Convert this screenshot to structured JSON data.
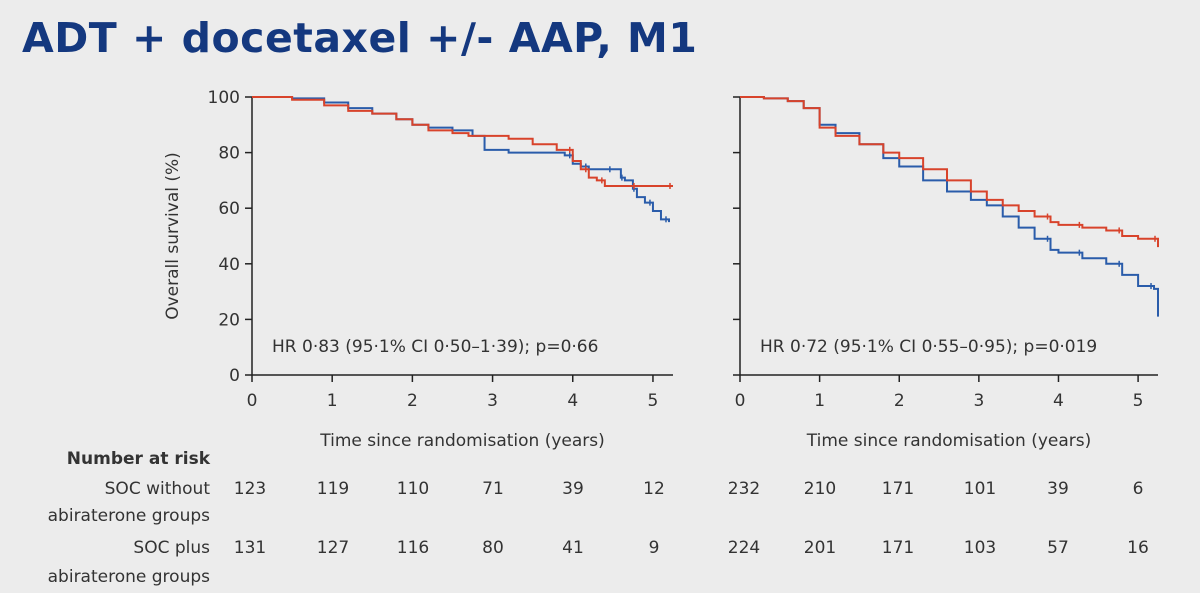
{
  "title": "ADT + docetaxel +/- AAP, M1",
  "colors": {
    "soc_without": "#2a5caa",
    "soc_plus": "#d8432b",
    "title": "#14387f"
  },
  "risk_table": {
    "header": "Number at risk",
    "row_labels": [
      [
        "SOC without",
        "abiraterone groups"
      ],
      [
        "SOC plus",
        "abiraterone groups"
      ]
    ]
  },
  "chart_data": [
    {
      "type": "line",
      "xlabel": "Time since randomisation (years)",
      "ylabel": "Overall survival (%)",
      "xlim": [
        0,
        5.25
      ],
      "ylim": [
        0,
        100
      ],
      "xticks": [
        0,
        1,
        2,
        3,
        4,
        5
      ],
      "yticks": [
        0,
        20,
        40,
        60,
        80,
        100
      ],
      "grid": false,
      "annotation": "HR 0·83 (95·1% CI 0·50–1·39); p=0·66",
      "series": [
        {
          "color": "#2a5caa",
          "points": [
            [
              0,
              100
            ],
            [
              0.5,
              99.5
            ],
            [
              0.9,
              98
            ],
            [
              1.2,
              96
            ],
            [
              1.5,
              94
            ],
            [
              1.8,
              92
            ],
            [
              2.0,
              90
            ],
            [
              2.2,
              89
            ],
            [
              2.5,
              88
            ],
            [
              2.75,
              86
            ],
            [
              2.9,
              81
            ],
            [
              3.0,
              81
            ],
            [
              3.2,
              80
            ],
            [
              3.4,
              80
            ],
            [
              3.6,
              80
            ],
            [
              3.9,
              79
            ],
            [
              4.0,
              76
            ],
            [
              4.1,
              75
            ],
            [
              4.2,
              74
            ],
            [
              4.3,
              74
            ],
            [
              4.5,
              74
            ],
            [
              4.6,
              71
            ],
            [
              4.65,
              70
            ],
            [
              4.75,
              67
            ],
            [
              4.8,
              64
            ],
            [
              4.9,
              62
            ],
            [
              5.0,
              59
            ],
            [
              5.1,
              56
            ],
            [
              5.2,
              55
            ]
          ],
          "at_risk": [
            123,
            119,
            110,
            71,
            39,
            12
          ]
        },
        {
          "color": "#d8432b",
          "points": [
            [
              0,
              100
            ],
            [
              0.5,
              99
            ],
            [
              0.9,
              97
            ],
            [
              1.2,
              95
            ],
            [
              1.5,
              94
            ],
            [
              1.8,
              92
            ],
            [
              2.0,
              90
            ],
            [
              2.2,
              88
            ],
            [
              2.5,
              87
            ],
            [
              2.7,
              86
            ],
            [
              3.0,
              86
            ],
            [
              3.2,
              85
            ],
            [
              3.5,
              83
            ],
            [
              3.8,
              81
            ],
            [
              4.0,
              77
            ],
            [
              4.1,
              74
            ],
            [
              4.2,
              71
            ],
            [
              4.3,
              70
            ],
            [
              4.4,
              68
            ],
            [
              4.6,
              68
            ],
            [
              4.8,
              68
            ],
            [
              5.0,
              68
            ],
            [
              5.25,
              68
            ]
          ],
          "at_risk": [
            131,
            127,
            116,
            80,
            41,
            9
          ]
        }
      ]
    },
    {
      "type": "line",
      "xlabel": "Time since randomisation (years)",
      "ylabel": "",
      "xlim": [
        0,
        5.25
      ],
      "ylim": [
        0,
        100
      ],
      "xticks": [
        0,
        1,
        2,
        3,
        4,
        5
      ],
      "yticks": [
        0,
        20,
        40,
        60,
        80,
        100
      ],
      "grid": false,
      "annotation": "HR 0·72 (95·1% CI 0·55–0·95); p=0·019",
      "series": [
        {
          "color": "#2a5caa",
          "points": [
            [
              0,
              100
            ],
            [
              0.3,
              99.5
            ],
            [
              0.6,
              98.5
            ],
            [
              0.8,
              96
            ],
            [
              1.0,
              90
            ],
            [
              1.2,
              87
            ],
            [
              1.5,
              83
            ],
            [
              1.8,
              78
            ],
            [
              2.0,
              75
            ],
            [
              2.3,
              70
            ],
            [
              2.6,
              66
            ],
            [
              2.9,
              63
            ],
            [
              3.1,
              61
            ],
            [
              3.3,
              57
            ],
            [
              3.5,
              53
            ],
            [
              3.7,
              49
            ],
            [
              3.9,
              45
            ],
            [
              4.0,
              44
            ],
            [
              4.3,
              42
            ],
            [
              4.6,
              40
            ],
            [
              4.8,
              36
            ],
            [
              5.0,
              32
            ],
            [
              5.2,
              31
            ],
            [
              5.25,
              21
            ]
          ],
          "at_risk": [
            232,
            210,
            171,
            101,
            39,
            6
          ]
        },
        {
          "color": "#d8432b",
          "points": [
            [
              0,
              100
            ],
            [
              0.3,
              99.5
            ],
            [
              0.6,
              98.5
            ],
            [
              0.8,
              96
            ],
            [
              1.0,
              89
            ],
            [
              1.2,
              86
            ],
            [
              1.5,
              83
            ],
            [
              1.8,
              80
            ],
            [
              2.0,
              78
            ],
            [
              2.3,
              74
            ],
            [
              2.6,
              70
            ],
            [
              2.9,
              66
            ],
            [
              3.1,
              63
            ],
            [
              3.3,
              61
            ],
            [
              3.5,
              59
            ],
            [
              3.7,
              57
            ],
            [
              3.9,
              55
            ],
            [
              4.0,
              54
            ],
            [
              4.3,
              53
            ],
            [
              4.6,
              52
            ],
            [
              4.8,
              50
            ],
            [
              5.0,
              49
            ],
            [
              5.25,
              46
            ]
          ],
          "at_risk": [
            224,
            201,
            171,
            103,
            57,
            16
          ]
        }
      ]
    }
  ]
}
